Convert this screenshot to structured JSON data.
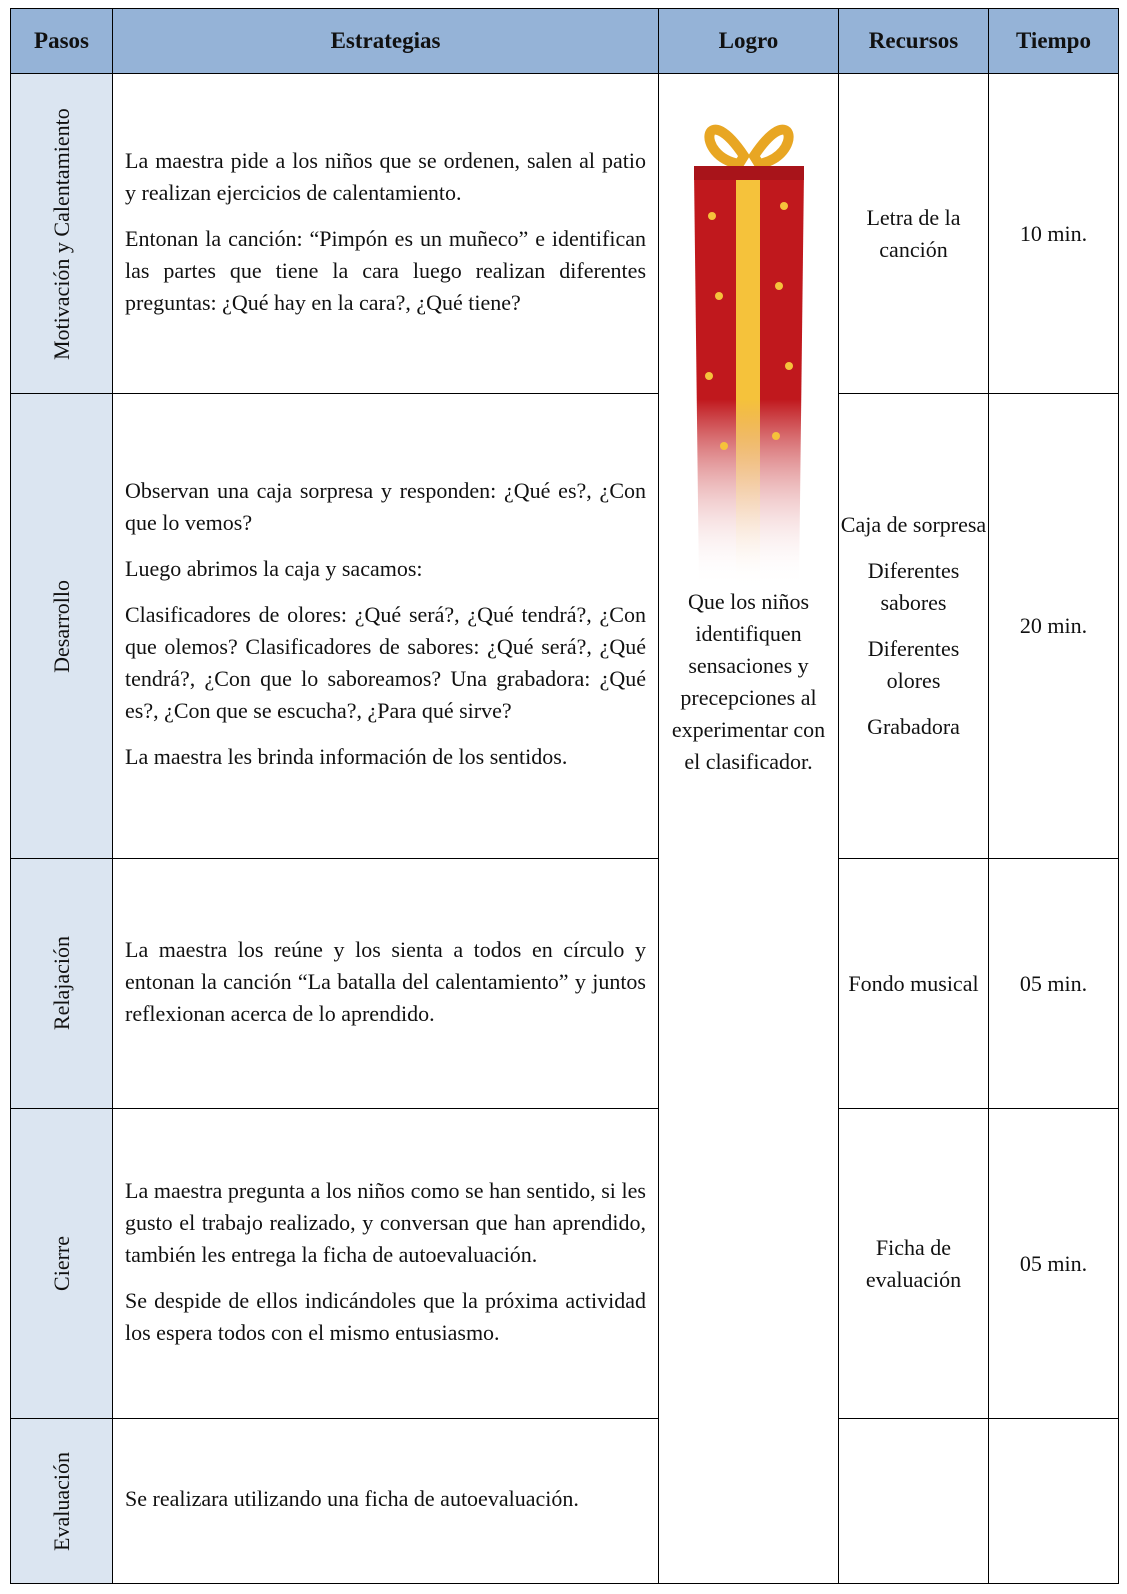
{
  "table": {
    "headers": [
      "Pasos",
      "Estrategias",
      "Logro",
      "Recursos",
      "Tiempo"
    ],
    "logro": "Que los niños identifiquen sensaciones y precepciones al experimentar con el clasificador.",
    "rows": [
      {
        "paso": "Motivación y Calentamiento",
        "estrategias": [
          "La maestra pide a los niños que se ordenen, salen al patio y realizan ejercicios de calentamiento.",
          "Entonan la canción: “Pimpón es un muñeco” e identifican las partes que tiene la cara luego realizan diferentes preguntas: ¿Qué hay en la cara?, ¿Qué tiene?"
        ],
        "recursos": [
          "Letra de la canción"
        ],
        "tiempo": "10 min."
      },
      {
        "paso": "Desarrollo",
        "estrategias": [
          "Observan una caja sorpresa y responden: ¿Qué es?, ¿Con que lo vemos?",
          "Luego abrimos la caja y sacamos:",
          "Clasificadores de olores: ¿Qué será?, ¿Qué tendrá?, ¿Con que olemos? Clasificadores de sabores: ¿Qué será?, ¿Qué tendrá?, ¿Con que lo saboreamos? Una grabadora: ¿Qué es?, ¿Con que se escucha?, ¿Para qué sirve?",
          "La maestra les brinda información de los sentidos."
        ],
        "recursos": [
          "Caja de sorpresa",
          "Diferentes sabores",
          "Diferentes olores",
          "Grabadora"
        ],
        "tiempo": "20 min."
      },
      {
        "paso": "Relajación",
        "estrategias": [
          "La maestra los reúne y los sienta a todos en círculo y entonan la canción “La batalla del calentamiento” y juntos reflexionan acerca de lo aprendido."
        ],
        "recursos": [
          "Fondo musical"
        ],
        "tiempo": "05 min."
      },
      {
        "paso": "Cierre",
        "estrategias": [
          "La maestra pregunta a los niños como se han sentido, si les gusto el trabajo realizado, y conversan que han aprendido, también les entrega la ficha de autoevaluación.",
          "Se despide de ellos indicándoles que la próxima actividad los espera todos con el mismo entusiasmo."
        ],
        "recursos": [
          "Ficha de evaluación"
        ],
        "tiempo": "05 min."
      },
      {
        "paso": "Evaluación",
        "estrategias": [
          "Se realizara utilizando una ficha de autoevaluación."
        ]
      }
    ]
  }
}
